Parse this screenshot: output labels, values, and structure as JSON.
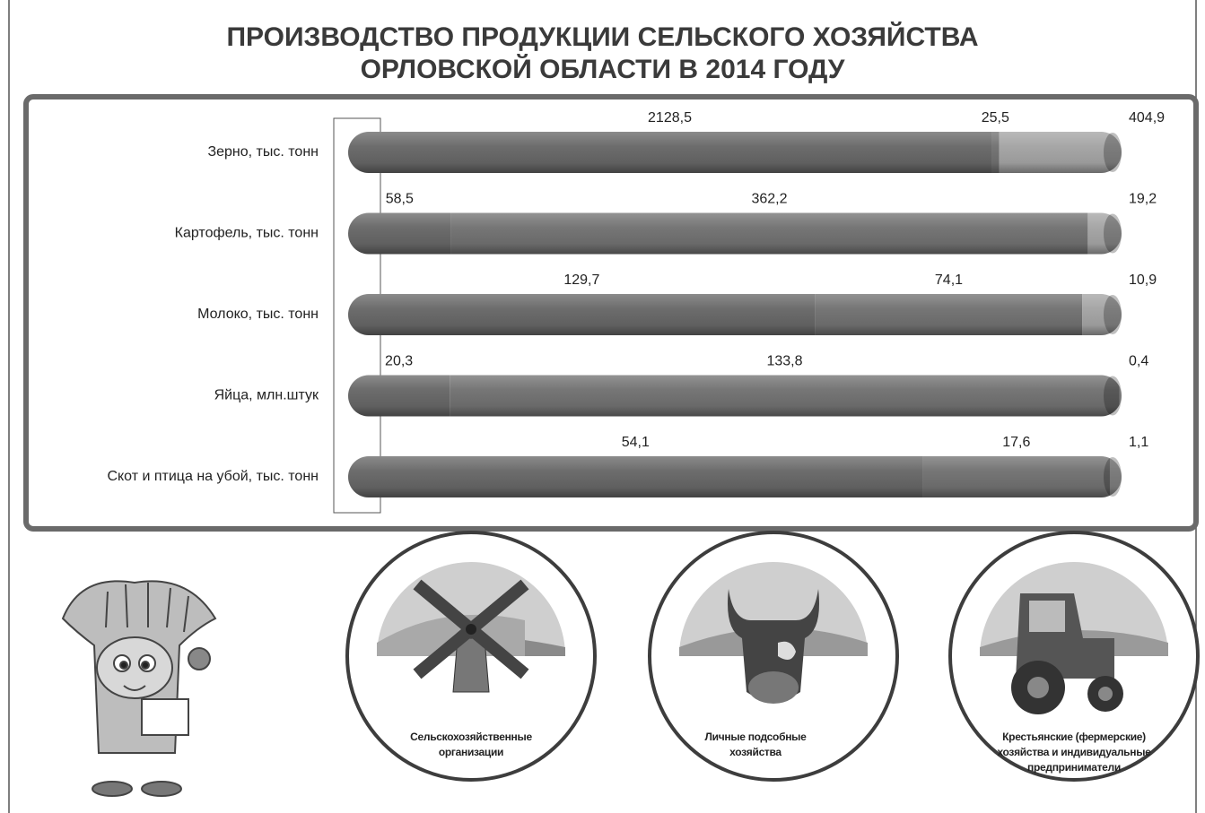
{
  "chart_data": {
    "type": "stacked-bar-100",
    "title": "ПРОИЗВОДСТВО ПРОДУКЦИИ СЕЛЬСКОГО ХОЗЯЙСТВА ОРЛОВСКОЙ ОБЛАСТИ В 2014 ГОДУ",
    "categories": [
      "Зерно, тыс. тонн",
      "Картофель, тыс. тонн",
      "Молоко, тыс. тонн",
      "Яйца, млн.штук",
      "Скот и птица на убой, тыс. тонн"
    ],
    "series": [
      {
        "name": "Сельскохозяйственные организации",
        "color": "#656565",
        "values": [
          2128.5,
          58.5,
          129.7,
          20.3,
          54.1
        ],
        "value_labels": [
          "2128,5",
          "58,5",
          "129,7",
          "20,3",
          "54,1"
        ]
      },
      {
        "name": "Личные подсобные хозяйства",
        "color": "#6f6f6f",
        "values": [
          25.5,
          362.2,
          74.1,
          133.8,
          17.6
        ],
        "value_labels": [
          "25,5",
          "362,2",
          "74,1",
          "133,8",
          "17,6"
        ]
      },
      {
        "name": "Крестьянские (фермерские) хозяйства и индивидуальные предприниматели",
        "color": "#a2a2a2",
        "values": [
          404.9,
          19.2,
          10.9,
          0.4,
          1.1
        ],
        "value_labels": [
          "404,9",
          "19,2",
          "10,9",
          "0,4",
          "1,1"
        ]
      }
    ]
  }
}
